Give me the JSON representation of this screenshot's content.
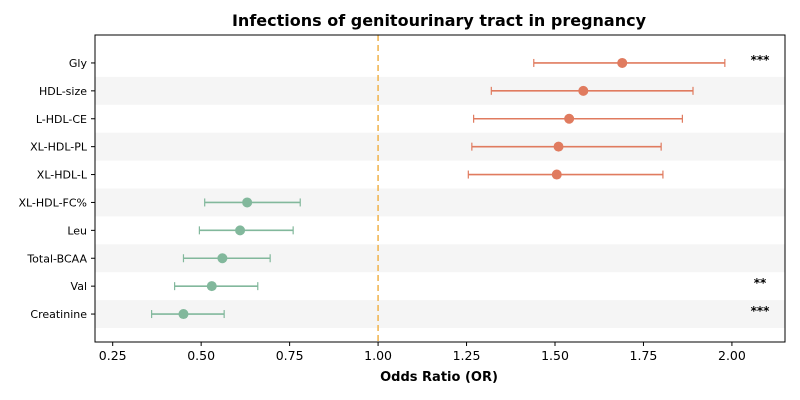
{
  "chart_data": {
    "type": "forest",
    "title": "Infections of genitourinary tract in pregnancy",
    "xlabel": "Odds Ratio (OR)",
    "xlim": [
      0.2,
      2.15
    ],
    "xticks": [
      0.25,
      0.5,
      0.75,
      1.0,
      1.25,
      1.5,
      1.75,
      2.0
    ],
    "xtick_labels": [
      "0.25",
      "0.50",
      "0.75",
      "1.00",
      "1.25",
      "1.50",
      "1.75",
      "2.00"
    ],
    "reference_line": 1.0,
    "colors": {
      "risk": "#e07b5f",
      "protective": "#82b89c",
      "reference": "#f0b24a",
      "band": "#f5f5f5"
    },
    "items": [
      {
        "label": "Gly",
        "or": 1.69,
        "lo": 1.44,
        "hi": 1.98,
        "sig": "***"
      },
      {
        "label": "HDL-size",
        "or": 1.58,
        "lo": 1.32,
        "hi": 1.89,
        "sig": ""
      },
      {
        "label": "L-HDL-CE",
        "or": 1.54,
        "lo": 1.27,
        "hi": 1.86,
        "sig": ""
      },
      {
        "label": "XL-HDL-PL",
        "or": 1.51,
        "lo": 1.265,
        "hi": 1.8,
        "sig": ""
      },
      {
        "label": "XL-HDL-L",
        "or": 1.505,
        "lo": 1.255,
        "hi": 1.805,
        "sig": ""
      },
      {
        "label": "XL-HDL-FC%",
        "or": 0.63,
        "lo": 0.51,
        "hi": 0.78,
        "sig": ""
      },
      {
        "label": "Leu",
        "or": 0.61,
        "lo": 0.495,
        "hi": 0.76,
        "sig": ""
      },
      {
        "label": "Total-BCAA",
        "or": 0.56,
        "lo": 0.45,
        "hi": 0.695,
        "sig": ""
      },
      {
        "label": "Val",
        "or": 0.53,
        "lo": 0.425,
        "hi": 0.66,
        "sig": "**"
      },
      {
        "label": "Creatinine",
        "or": 0.45,
        "lo": 0.36,
        "hi": 0.565,
        "sig": "***"
      }
    ]
  }
}
